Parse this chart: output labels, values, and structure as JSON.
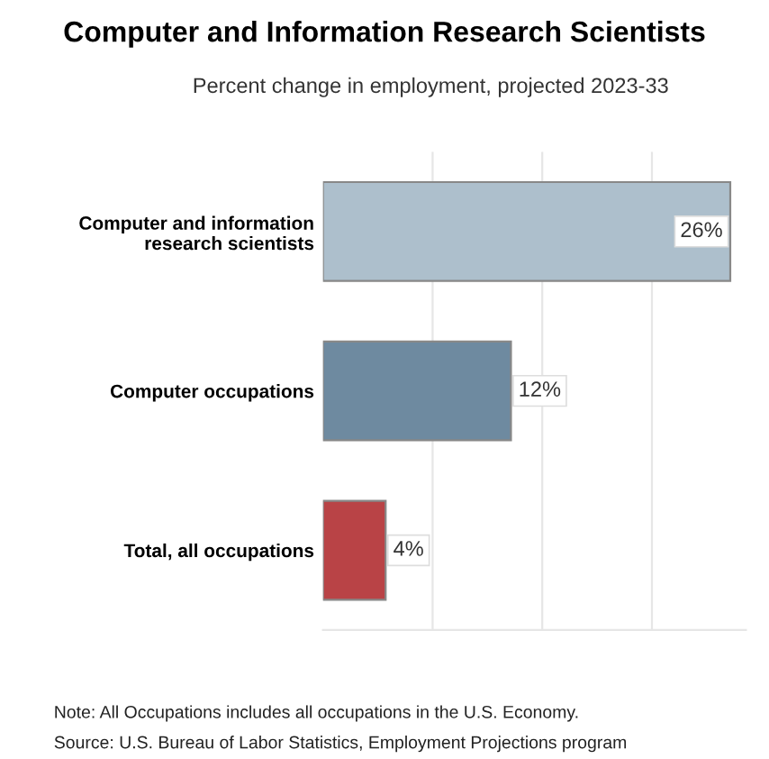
{
  "chart_data": {
    "type": "bar",
    "orientation": "horizontal",
    "title": "Computer and Information Research Scientists",
    "subtitle": "Percent change in employment, projected 2023-33",
    "categories": [
      "Computer and information\nresearch scientists",
      "Computer occupations",
      "Total, all occupations"
    ],
    "values": [
      26,
      12,
      4
    ],
    "colors": [
      "#adbfcc",
      "#6e8aa0",
      "#b94346"
    ],
    "value_labels": [
      "26%",
      "12%",
      "4%"
    ],
    "xlim": [
      0,
      27
    ],
    "xticks": [
      {
        "value": 7,
        "label": null
      },
      {
        "value": 14,
        "label": null
      },
      {
        "value": 21,
        "label": null
      }
    ],
    "grid": "x",
    "annotations": [
      "Note: All Occupations includes all occupations in the U.S. Economy.",
      "Source: U.S. Bureau of Labor Statistics, Employment Projections program"
    ]
  }
}
